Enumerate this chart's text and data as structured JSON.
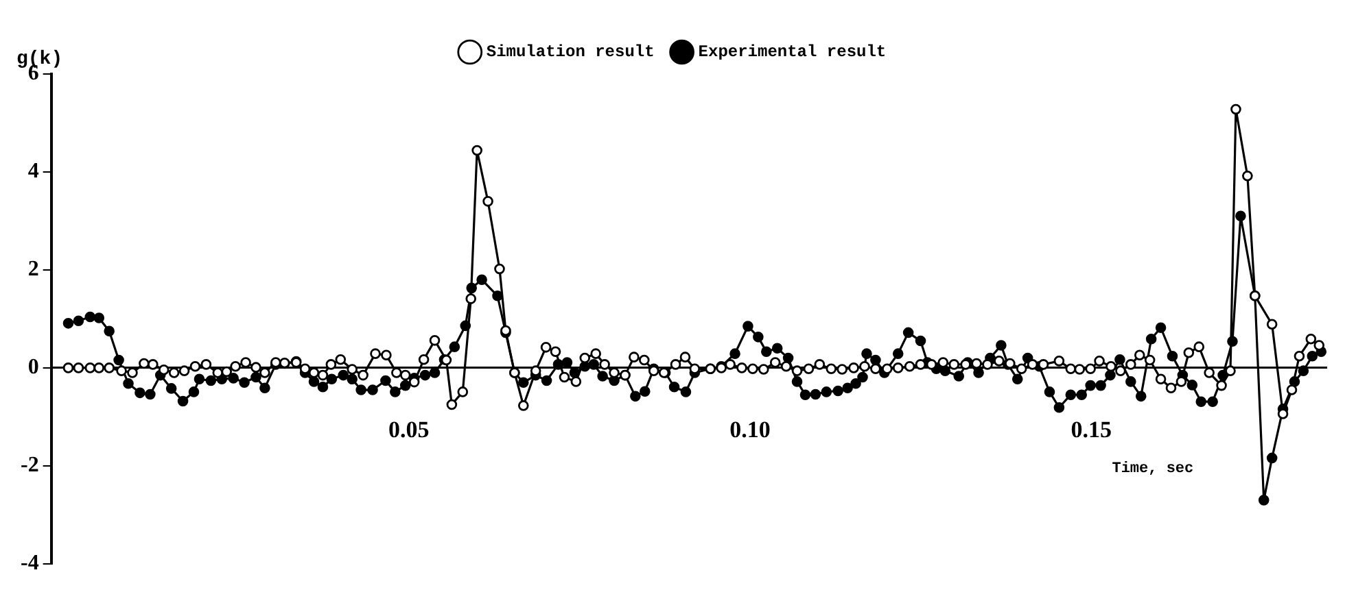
{
  "chart_data": {
    "type": "line",
    "xlabel": "Time, sec",
    "ylabel": "g(k)",
    "xlim": [
      -0.0024,
      0.1845
    ],
    "xticks": [
      0.05,
      {
        "value": 0.1,
        "label": "0.10"
      },
      0.15
    ],
    "ylim": [
      -4,
      6
    ],
    "yticks": [
      -4,
      -2,
      0,
      2,
      4,
      6
    ],
    "grid": false,
    "legend": "top",
    "marker": "circle",
    "line_style": "solid",
    "series": [
      {
        "name": "Simulation result",
        "color": "#000000",
        "x": [
          0.0001,
          0.0016,
          0.0033,
          0.0046,
          0.0061,
          0.0079,
          0.0095,
          0.0112,
          0.0125,
          0.0141,
          0.0156,
          0.0171,
          0.0187,
          0.0203,
          0.022,
          0.0233,
          0.0246,
          0.0261,
          0.0276,
          0.0289,
          0.0305,
          0.0318,
          0.0335,
          0.0348,
          0.0361,
          0.0374,
          0.0386,
          0.04,
          0.0417,
          0.0433,
          0.0451,
          0.0467,
          0.0482,
          0.0495,
          0.0508,
          0.0522,
          0.0538,
          0.0555,
          0.0563,
          0.0579,
          0.0591,
          0.06,
          0.0616,
          0.0633,
          0.0642,
          0.0655,
          0.0668,
          0.0686,
          0.0701,
          0.0715,
          0.0728,
          0.0745,
          0.0758,
          0.0774,
          0.0787,
          0.0801,
          0.0817,
          0.083,
          0.0845,
          0.0859,
          0.0874,
          0.0891,
          0.0905,
          0.0919,
          0.0942,
          0.0958,
          0.0971,
          0.0988,
          0.1004,
          0.102,
          0.1037,
          0.1053,
          0.1069,
          0.1086,
          0.1102,
          0.1119,
          0.1135,
          0.1152,
          0.1168,
          0.1184,
          0.1201,
          0.1217,
          0.1234,
          0.125,
          0.1266,
          0.1283,
          0.1299,
          0.1316,
          0.1332,
          0.1348,
          0.1365,
          0.1381,
          0.1398,
          0.1414,
          0.143,
          0.1453,
          0.147,
          0.1483,
          0.1499,
          0.1512,
          0.1529,
          0.1543,
          0.1558,
          0.1571,
          0.1586,
          0.1602,
          0.1617,
          0.1632,
          0.1643,
          0.1658,
          0.1673,
          0.1691,
          0.1704,
          0.1712,
          0.1729,
          0.174,
          0.1765,
          0.1781,
          0.1794,
          0.1805,
          0.1822,
          0.1834
        ],
        "values": [
          0,
          0,
          0,
          0,
          0,
          -0.06,
          -0.1,
          0.09,
          0.07,
          -0.04,
          -0.1,
          -0.06,
          0.03,
          0.07,
          -0.1,
          -0.08,
          0.03,
          0.11,
          0.01,
          -0.1,
          0.11,
          0.1,
          0.11,
          -0.02,
          -0.1,
          -0.15,
          0.07,
          0.17,
          -0.03,
          -0.15,
          0.29,
          0.26,
          -0.1,
          -0.15,
          -0.29,
          0.17,
          0.56,
          0.16,
          -0.75,
          -0.49,
          1.41,
          4.44,
          3.4,
          2.02,
          0.76,
          -0.1,
          -0.77,
          -0.06,
          0.42,
          0.33,
          -0.19,
          -0.28,
          0.2,
          0.29,
          0.07,
          -0.1,
          -0.15,
          0.22,
          0.16,
          -0.06,
          -0.1,
          0.07,
          0.22,
          -0.02,
          -0.02,
          0,
          0.07,
          0,
          -0.02,
          -0.03,
          0.11,
          0.03,
          -0.06,
          -0.02,
          0.07,
          -0.02,
          -0.03,
          0,
          0.03,
          -0.02,
          -0.02,
          0,
          0.03,
          0.07,
          0.07,
          0.11,
          0.07,
          0.07,
          0.09,
          0.07,
          0.14,
          0.09,
          -0.02,
          0.07,
          0.07,
          0.14,
          -0.02,
          -0.03,
          -0.02,
          0.14,
          0.03,
          -0.06,
          0.07,
          0.26,
          0.16,
          -0.23,
          -0.41,
          -0.28,
          0.31,
          0.43,
          -0.1,
          -0.36,
          -0.06,
          5.28,
          3.92,
          1.47,
          0.89,
          -0.94,
          -0.45,
          0.24,
          0.59,
          0.46
        ]
      },
      {
        "name": "Experimental result",
        "color": "#000000",
        "x": [
          0.0001,
          0.0016,
          0.0033,
          0.0046,
          0.0061,
          0.0075,
          0.0089,
          0.0106,
          0.0121,
          0.0136,
          0.0152,
          0.0169,
          0.0185,
          0.0193,
          0.021,
          0.0226,
          0.0243,
          0.0259,
          0.0276,
          0.0289,
          0.0305,
          0.0318,
          0.0335,
          0.0348,
          0.0361,
          0.0374,
          0.0387,
          0.0404,
          0.0417,
          0.043,
          0.0447,
          0.0466,
          0.048,
          0.0495,
          0.0508,
          0.0524,
          0.0538,
          0.0552,
          0.0567,
          0.0583,
          0.0592,
          0.0607,
          0.063,
          0.0642,
          0.0655,
          0.0668,
          0.0686,
          0.0702,
          0.0719,
          0.0732,
          0.0743,
          0.0758,
          0.0771,
          0.0784,
          0.0801,
          0.0817,
          0.0832,
          0.0846,
          0.0859,
          0.0876,
          0.0889,
          0.0906,
          0.0919,
          0.0942,
          0.0958,
          0.0978,
          0.0997,
          0.1012,
          0.1024,
          0.104,
          0.1056,
          0.1069,
          0.1081,
          0.1096,
          0.1112,
          0.1129,
          0.1143,
          0.1155,
          0.1165,
          0.1171,
          0.1184,
          0.1197,
          0.1217,
          0.1232,
          0.125,
          0.126,
          0.1273,
          0.1286,
          0.1306,
          0.1319,
          0.1335,
          0.1352,
          0.1368,
          0.1378,
          0.1392,
          0.1407,
          0.1424,
          0.1439,
          0.1453,
          0.147,
          0.1486,
          0.1499,
          0.1514,
          0.1528,
          0.1542,
          0.1558,
          0.1573,
          0.1588,
          0.1602,
          0.1619,
          0.1634,
          0.1648,
          0.1661,
          0.1678,
          0.1693,
          0.1707,
          0.1719,
          0.174,
          0.1753,
          0.1765,
          0.1781,
          0.1798,
          0.1811,
          0.1824,
          0.1837
        ],
        "values": [
          0.91,
          0.96,
          1.04,
          1.02,
          0.75,
          0.16,
          -0.32,
          -0.51,
          -0.54,
          -0.15,
          -0.42,
          -0.68,
          -0.49,
          -0.23,
          -0.26,
          -0.23,
          -0.21,
          -0.3,
          -0.19,
          -0.41,
          0.07,
          0.09,
          0.13,
          -0.1,
          -0.28,
          -0.39,
          -0.23,
          -0.15,
          -0.23,
          -0.45,
          -0.45,
          -0.26,
          -0.49,
          -0.36,
          -0.21,
          -0.15,
          -0.1,
          0.17,
          0.43,
          0.86,
          1.63,
          1.8,
          1.47,
          0.72,
          -0.1,
          -0.3,
          -0.15,
          -0.26,
          0.07,
          0.11,
          -0.1,
          0.03,
          0.07,
          -0.17,
          -0.26,
          -0.15,
          -0.58,
          -0.48,
          -0.02,
          -0.1,
          -0.39,
          -0.49,
          -0.1,
          -0.02,
          0.03,
          0.29,
          0.85,
          0.63,
          0.33,
          0.4,
          0.2,
          -0.28,
          -0.55,
          -0.54,
          -0.49,
          -0.47,
          -0.41,
          -0.32,
          -0.19,
          0.29,
          0.16,
          -0.1,
          0.29,
          0.72,
          0.55,
          0.11,
          -0.02,
          -0.06,
          -0.17,
          0.11,
          -0.1,
          0.2,
          0.46,
          0.07,
          -0.23,
          0.2,
          0.03,
          -0.49,
          -0.81,
          -0.55,
          -0.55,
          -0.36,
          -0.36,
          -0.15,
          0.17,
          -0.28,
          -0.58,
          0.59,
          0.82,
          0.24,
          -0.15,
          -0.35,
          -0.69,
          -0.69,
          -0.15,
          0.54,
          3.1,
          1.47,
          -2.7,
          -1.84,
          -0.84,
          -0.28,
          -0.06,
          0.24,
          0.33
        ]
      }
    ]
  }
}
